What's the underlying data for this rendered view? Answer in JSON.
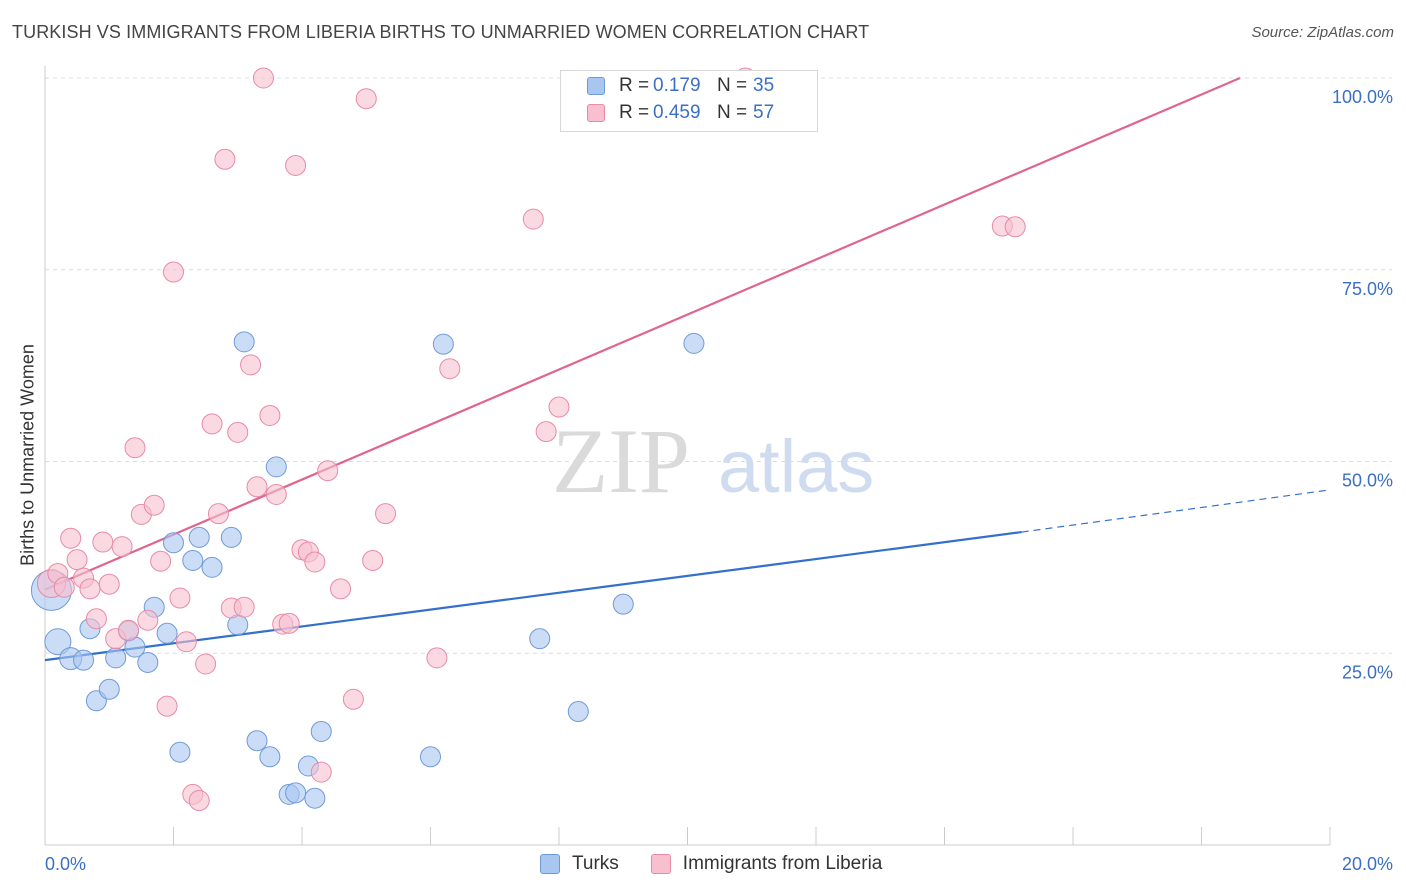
{
  "title": "TURKISH VS IMMIGRANTS FROM LIBERIA BIRTHS TO UNMARRIED WOMEN CORRELATION CHART",
  "source": "Source: ZipAtlas.com",
  "watermark": {
    "zip": "ZIP",
    "atlas": "atlas"
  },
  "legend": {
    "rows": [
      {
        "r_label": "R =",
        "r_value": "0.179",
        "n_label": "N =",
        "n_value": "35",
        "color": "#a9c6f0",
        "border": "#6f9ad9"
      },
      {
        "r_label": "R =",
        "r_value": "0.459",
        "n_label": "N =",
        "n_value": "57",
        "color": "#f7bfd0",
        "border": "#e88aa8"
      }
    ]
  },
  "bottom_legend": [
    {
      "label": "Turks",
      "color": "#a9c6f0",
      "border": "#6f9ad9"
    },
    {
      "label": "Immigrants from Liberia",
      "color": "#f7bfd0",
      "border": "#e88aa8"
    }
  ],
  "chart_data": {
    "type": "scatter",
    "title": "TURKISH VS IMMIGRANTS FROM LIBERIA BIRTHS TO UNMARRIED WOMEN CORRELATION CHART",
    "xlabel": "",
    "ylabel": "Births to Unmarried Women",
    "xlim": [
      0,
      20
    ],
    "ylim": [
      0,
      100
    ],
    "x_tick_labels": [
      {
        "value": 0,
        "label": "0.0%"
      },
      {
        "value": 20,
        "label": "20.0%"
      }
    ],
    "y_tick_labels": [
      {
        "value": 25,
        "label": "25.0%"
      },
      {
        "value": 50,
        "label": "50.0%"
      },
      {
        "value": 75,
        "label": "75.0%"
      },
      {
        "value": 100,
        "label": "100.0%"
      }
    ],
    "grid": true,
    "series": [
      {
        "name": "Turks",
        "color": "#a9c6f0",
        "stroke": "#6f9ad9",
        "line_color": "#3370cc",
        "trend": {
          "x0": 0,
          "y0": 24.1,
          "x1": 15.2,
          "y1": 40.8,
          "dash_to_x": 20,
          "dash_to_y": 46.3
        },
        "points": [
          [
            0.1,
            33.2,
            20
          ],
          [
            0.2,
            26.5,
            13
          ],
          [
            0.4,
            24.3,
            11
          ],
          [
            0.6,
            24.1,
            10
          ],
          [
            0.7,
            28.2,
            10
          ],
          [
            0.8,
            18.8,
            10
          ],
          [
            1.0,
            20.3,
            10
          ],
          [
            1.1,
            24.4,
            10
          ],
          [
            1.3,
            27.9,
            10
          ],
          [
            1.4,
            25.8,
            10
          ],
          [
            1.6,
            23.8,
            10
          ],
          [
            1.7,
            31.0,
            10
          ],
          [
            1.9,
            27.6,
            10
          ],
          [
            2.0,
            39.4,
            10
          ],
          [
            2.1,
            12.1,
            10
          ],
          [
            2.3,
            37.1,
            10
          ],
          [
            2.4,
            40.1,
            10
          ],
          [
            2.6,
            36.2,
            10
          ],
          [
            2.9,
            40.1,
            10
          ],
          [
            3.0,
            28.7,
            10
          ],
          [
            3.1,
            65.6,
            10
          ],
          [
            3.3,
            13.6,
            10
          ],
          [
            3.5,
            11.5,
            10
          ],
          [
            3.6,
            49.3,
            10
          ],
          [
            3.8,
            6.6,
            10
          ],
          [
            3.9,
            6.8,
            10
          ],
          [
            4.1,
            10.3,
            10
          ],
          [
            4.2,
            6.1,
            10
          ],
          [
            4.3,
            14.8,
            10
          ],
          [
            6.0,
            11.5,
            10
          ],
          [
            6.2,
            65.3,
            10
          ],
          [
            7.7,
            26.9,
            10
          ],
          [
            8.3,
            17.4,
            10
          ],
          [
            9.0,
            31.4,
            10
          ],
          [
            10.1,
            65.4,
            10
          ]
        ]
      },
      {
        "name": "Immigrants from Liberia",
        "color": "#f7bfd0",
        "stroke": "#e88aa8",
        "line_color": "#e0648f",
        "trend": {
          "x0": 0,
          "y0": 33.3,
          "x1": 18.6,
          "y1": 100
        },
        "points": [
          [
            0.1,
            34.1,
            14
          ],
          [
            0.2,
            35.4,
            10
          ],
          [
            0.3,
            33.6,
            10
          ],
          [
            0.4,
            40.0,
            10
          ],
          [
            0.5,
            37.2,
            10
          ],
          [
            0.6,
            34.8,
            10
          ],
          [
            0.7,
            33.4,
            10
          ],
          [
            0.8,
            29.5,
            10
          ],
          [
            0.9,
            39.5,
            10
          ],
          [
            1.0,
            34.0,
            10
          ],
          [
            1.1,
            26.9,
            10
          ],
          [
            1.2,
            38.9,
            10
          ],
          [
            1.3,
            28.0,
            10
          ],
          [
            1.4,
            51.8,
            10
          ],
          [
            1.5,
            43.1,
            10
          ],
          [
            1.6,
            29.3,
            10
          ],
          [
            1.7,
            44.3,
            10
          ],
          [
            1.8,
            37.0,
            10
          ],
          [
            1.9,
            18.1,
            10
          ],
          [
            2.0,
            74.7,
            10
          ],
          [
            2.1,
            32.2,
            10
          ],
          [
            2.2,
            26.5,
            10
          ],
          [
            2.3,
            6.6,
            10
          ],
          [
            2.4,
            5.8,
            10
          ],
          [
            2.5,
            23.6,
            10
          ],
          [
            2.6,
            54.9,
            10
          ],
          [
            2.7,
            43.2,
            10
          ],
          [
            2.8,
            89.4,
            10
          ],
          [
            2.9,
            30.9,
            10
          ],
          [
            3.0,
            53.8,
            10
          ],
          [
            3.1,
            31.0,
            10
          ],
          [
            3.2,
            62.6,
            10
          ],
          [
            3.3,
            46.7,
            10
          ],
          [
            3.4,
            100.0,
            10
          ],
          [
            3.5,
            56.0,
            10
          ],
          [
            3.6,
            45.7,
            10
          ],
          [
            3.7,
            28.8,
            10
          ],
          [
            3.8,
            28.9,
            10
          ],
          [
            3.9,
            88.6,
            10
          ],
          [
            4.0,
            38.5,
            10
          ],
          [
            4.1,
            38.2,
            10
          ],
          [
            4.2,
            36.9,
            10
          ],
          [
            4.3,
            9.5,
            10
          ],
          [
            4.4,
            48.8,
            10
          ],
          [
            4.6,
            33.4,
            10
          ],
          [
            4.8,
            19.0,
            10
          ],
          [
            5.0,
            97.3,
            10
          ],
          [
            5.1,
            37.1,
            10
          ],
          [
            5.3,
            43.2,
            10
          ],
          [
            6.1,
            24.4,
            10
          ],
          [
            6.3,
            62.1,
            10
          ],
          [
            7.6,
            81.6,
            10
          ],
          [
            7.8,
            53.9,
            10
          ],
          [
            8.0,
            57.1,
            10
          ],
          [
            10.9,
            100.0,
            10
          ],
          [
            14.9,
            80.7,
            10
          ],
          [
            15.1,
            80.6,
            10
          ]
        ]
      }
    ]
  }
}
